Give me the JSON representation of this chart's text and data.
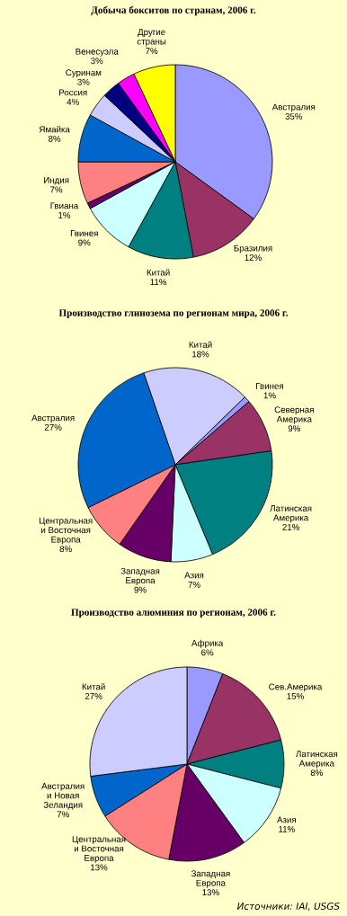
{
  "chart_data": [
    {
      "type": "pie",
      "title": "Добыча бокситов по странам, 2006 г.",
      "categories": [
        "Австралия",
        "Бразилия",
        "Китай",
        "Гвинея",
        "Гвиана",
        "Индия",
        "Ямайка",
        "Россия",
        "Суринам",
        "Венесуэла",
        "Другие\nстраны"
      ],
      "values": [
        35,
        12,
        11,
        9,
        1,
        7,
        8,
        4,
        3,
        3,
        7
      ],
      "colors": [
        "#9999ff",
        "#993366",
        "#008080",
        "#ccffff",
        "#660066",
        "#ff8080",
        "#0066cc",
        "#ccccff",
        "#000080",
        "#ff00ff",
        "#ffff00"
      ],
      "value_labels": [
        "35%",
        "12%",
        "11%",
        "9%",
        "1%",
        "7%",
        "8%",
        "4%",
        "3%",
        "3%",
        "7%"
      ]
    },
    {
      "type": "pie",
      "title": "Производство глинозема по регионам мира, 2006 г.",
      "categories": [
        "Китай",
        "Гвинея",
        "Северная\nАмерика",
        "Латинская\nАмерика",
        "Азия",
        "Западная\nЕвропа",
        "Центральная\nи Восточная\nЕвропа",
        "Австралия"
      ],
      "values": [
        18,
        1,
        9,
        21,
        7,
        9,
        8,
        27
      ],
      "colors": [
        "#ccccff",
        "#9999ff",
        "#993366",
        "#008080",
        "#ccffff",
        "#660066",
        "#ff8080",
        "#0066cc"
      ],
      "value_labels": [
        "18%",
        "1%",
        "9%",
        "21%",
        "7%",
        "9%",
        "8%",
        "27%"
      ]
    },
    {
      "type": "pie",
      "title": "Производство алюминия по регионам, 2006 г.",
      "categories": [
        "Африка",
        "Сев.Америка",
        "Латинская\nАмерика",
        "Азия",
        "Западная\nЕвропа",
        "Центральная\nи Восточная\nЕвропа",
        "Австралия\nи Новая\nЗеландия",
        "Китай"
      ],
      "values": [
        6,
        15,
        8,
        11,
        13,
        13,
        7,
        27
      ],
      "colors": [
        "#9999ff",
        "#993366",
        "#008080",
        "#ccffff",
        "#660066",
        "#ff8080",
        "#0066cc",
        "#ccccff"
      ],
      "value_labels": [
        "6%",
        "15%",
        "8%",
        "11%",
        "13%",
        "13%",
        "7%",
        "27%"
      ],
      "annotations": [
        "Источники: IAI, USGS"
      ]
    }
  ]
}
